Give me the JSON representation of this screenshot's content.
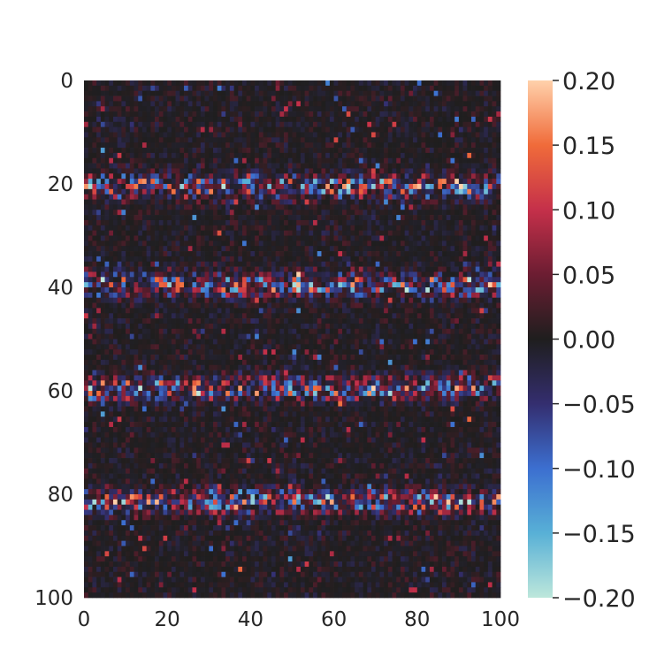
{
  "chart_data": {
    "type": "heatmap",
    "title": "",
    "xlabel": "",
    "ylabel": "",
    "grid": false,
    "rows": 100,
    "cols": 100,
    "xlim": [
      0,
      100
    ],
    "ylim": [
      100,
      0
    ],
    "x_ticks": [
      {
        "value": 0,
        "label": "0"
      },
      {
        "value": 20,
        "label": "20"
      },
      {
        "value": 40,
        "label": "40"
      },
      {
        "value": 60,
        "label": "60"
      },
      {
        "value": 80,
        "label": "80"
      },
      {
        "value": 100,
        "label": "100"
      }
    ],
    "y_ticks": [
      {
        "value": 0,
        "label": "0"
      },
      {
        "value": 20,
        "label": "20"
      },
      {
        "value": 40,
        "label": "40"
      },
      {
        "value": 60,
        "label": "60"
      },
      {
        "value": 80,
        "label": "80"
      },
      {
        "value": 100,
        "label": "100"
      }
    ],
    "vmin": -0.2,
    "vmax": 0.2,
    "colormap": "icefire",
    "colormap_stops": [
      {
        "value": -0.2,
        "color": "#bde7db"
      },
      {
        "value": -0.15,
        "color": "#58b0d6"
      },
      {
        "value": -0.1,
        "color": "#3c6fd0"
      },
      {
        "value": -0.05,
        "color": "#342e6f"
      },
      {
        "value": 0.0,
        "color": "#1f1e1e"
      },
      {
        "value": 0.05,
        "color": "#6c1d32"
      },
      {
        "value": 0.1,
        "color": "#c5304a"
      },
      {
        "value": 0.15,
        "color": "#f06b3a"
      },
      {
        "value": 0.2,
        "color": "#ffd1ab"
      }
    ],
    "colorbar": {
      "location": "right",
      "ticks": [
        {
          "value": 0.2,
          "label": "0.20"
        },
        {
          "value": 0.15,
          "label": "0.15"
        },
        {
          "value": 0.1,
          "label": "0.10"
        },
        {
          "value": 0.05,
          "label": "0.05"
        },
        {
          "value": 0.0,
          "label": "0.00"
        },
        {
          "value": -0.05,
          "label": "−0.05"
        },
        {
          "value": -0.1,
          "label": "−0.10"
        },
        {
          "value": -0.15,
          "label": "−0.15"
        },
        {
          "value": -0.2,
          "label": "−0.20"
        }
      ]
    },
    "value_pattern": {
      "description": "sparse noise with bright horizontal bands",
      "band_rows": [
        20,
        39,
        59,
        81
      ],
      "band_col_range": [
        0,
        100
      ],
      "background_amplitude": 0.03,
      "band_amplitude": 0.2
    }
  }
}
